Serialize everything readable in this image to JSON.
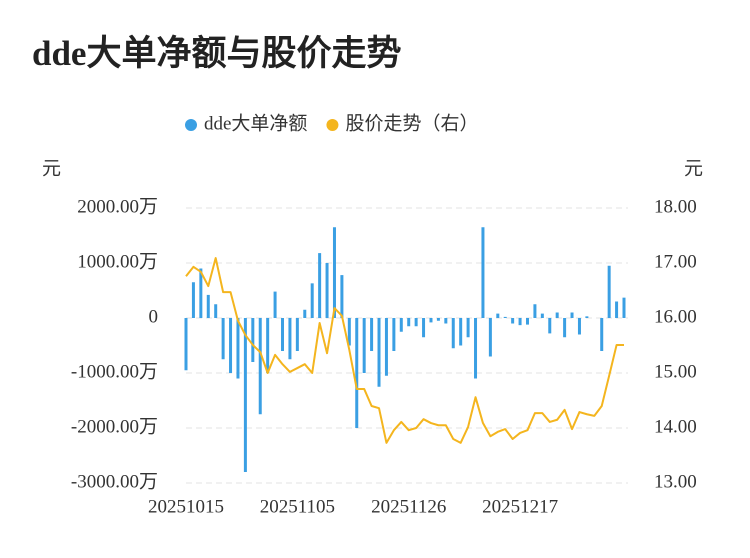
{
  "chart_data": {
    "type": "bar",
    "title": "dde大单净额与股价走势",
    "y_label": "元",
    "y2_label": "元",
    "categories": [
      "20251015",
      null,
      null,
      null,
      null,
      null,
      null,
      null,
      null,
      null,
      null,
      null,
      null,
      null,
      null,
      "20251105",
      null,
      null,
      null,
      null,
      null,
      null,
      null,
      null,
      null,
      null,
      null,
      null,
      null,
      null,
      "20251126",
      null,
      null,
      null,
      null,
      null,
      null,
      null,
      null,
      null,
      null,
      null,
      null,
      null,
      null,
      "20251217",
      null,
      null,
      null,
      null,
      null,
      null,
      null,
      null,
      null,
      null,
      null,
      null,
      null,
      null
    ],
    "series": [
      {
        "name": "dde大单净额",
        "type": "bar",
        "color": "#3a9fe3",
        "values": [
          -950,
          650,
          900,
          420,
          250,
          -750,
          -1000,
          -1100,
          -2800,
          -800,
          -1750,
          -1000,
          480,
          -600,
          -750,
          -600,
          150,
          630,
          1180,
          1000,
          1650,
          780,
          -500,
          -2000,
          -1000,
          -600,
          -1250,
          -1050,
          -600,
          -250,
          -150,
          -150,
          -350,
          -80,
          -50,
          -100,
          -550,
          -500,
          -350,
          -1100,
          1650,
          -700,
          80,
          20,
          -100,
          -130,
          -120,
          250,
          80,
          -280,
          100,
          -350,
          100,
          -300,
          30,
          0,
          -600,
          950,
          300,
          370
        ]
      },
      {
        "name": "股价走势（右）",
        "type": "line",
        "axis": "y2",
        "color": "#f4b51e",
        "values": [
          16.76,
          16.93,
          16.84,
          16.58,
          17.09,
          16.47,
          16.47,
          15.95,
          15.69,
          15.51,
          15.38,
          15.0,
          15.33,
          15.16,
          15.02,
          15.09,
          15.16,
          15.0,
          15.91,
          15.36,
          16.18,
          16.04,
          15.42,
          14.71,
          14.71,
          14.4,
          14.36,
          13.73,
          13.96,
          14.11,
          13.96,
          14.0,
          14.16,
          14.09,
          14.05,
          14.05,
          13.8,
          13.73,
          14.02,
          14.56,
          14.09,
          13.85,
          13.93,
          13.98,
          13.8,
          13.91,
          13.96,
          14.27,
          14.27,
          14.11,
          14.15,
          14.33,
          13.98,
          14.29,
          14.25,
          14.22,
          14.4,
          14.95,
          15.51,
          15.51
        ]
      }
    ],
    "ylim": [
      -3000,
      2000
    ],
    "yticks": [
      {
        "value": 2000,
        "label": "2000.00万"
      },
      {
        "value": 1000,
        "label": "1000.00万"
      },
      0,
      {
        "value": -1000,
        "label": "-1000.00万"
      },
      {
        "value": -2000,
        "label": "-2000.00万"
      },
      {
        "value": -3000,
        "label": "-3000.00万"
      }
    ],
    "y2lim": [
      13,
      18
    ],
    "y2ticks": [
      {
        "value": 18,
        "label": "18.00"
      },
      {
        "value": 17,
        "label": "17.00"
      },
      {
        "value": 16,
        "label": "16.00"
      },
      {
        "value": 15,
        "label": "15.00"
      },
      {
        "value": 14,
        "label": "14.00"
      },
      {
        "value": 13,
        "label": "13.00"
      }
    ],
    "grid": true,
    "legend": "top"
  }
}
